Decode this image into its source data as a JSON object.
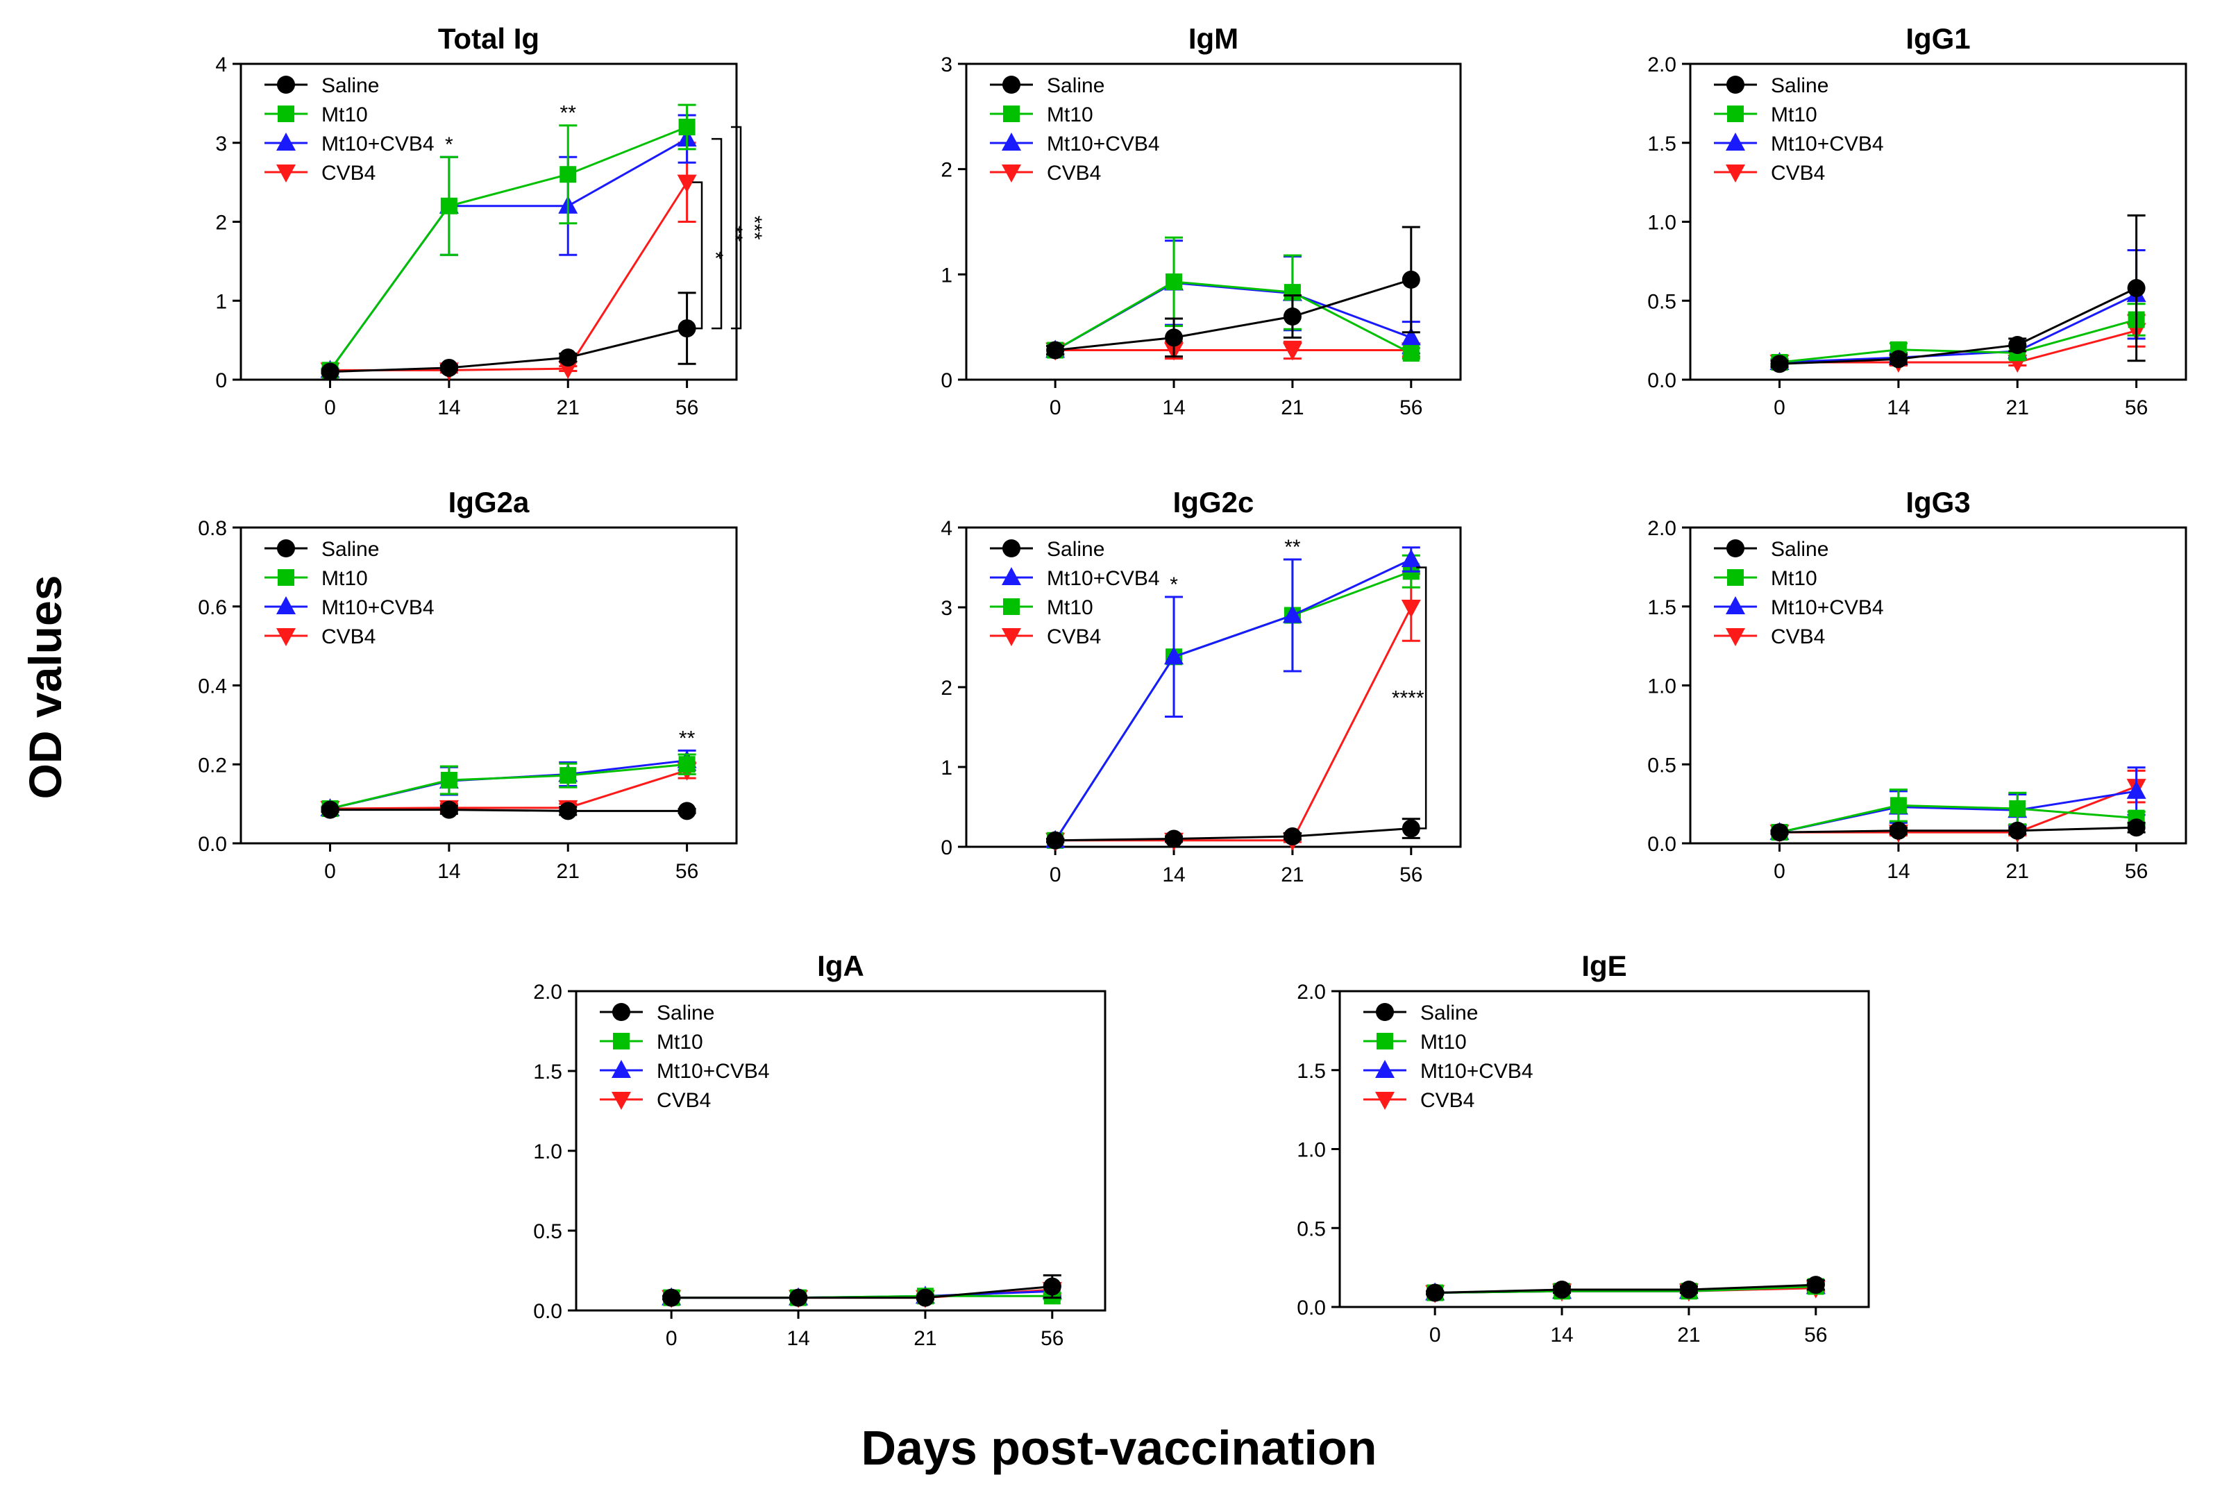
{
  "figure": {
    "ylabel": "OD values",
    "xlabel": "Days post-vaccination"
  },
  "colors": {
    "Saline": "#000000",
    "Mt10": "#00c000",
    "Mt10+CVB4": "#1a1aff",
    "CVB4": "#ff1a1a"
  },
  "markers": {
    "Saline": "circle",
    "Mt10": "square",
    "Mt10+CVB4": "triangle-up",
    "CVB4": "triangle-down"
  },
  "chart_data": [
    {
      "type": "line",
      "title": "Total Ig",
      "x": [
        "0",
        "14",
        "21",
        "56"
      ],
      "ylim": [
        0,
        4
      ],
      "yticks": [
        "0",
        "1",
        "2",
        "3",
        "4"
      ],
      "legend": [
        "Saline",
        "Mt10",
        "Mt10+CVB4",
        "CVB4"
      ],
      "series": [
        {
          "name": "Saline",
          "values": [
            0.1,
            0.15,
            0.28,
            0.65
          ],
          "errors": [
            0.02,
            0.03,
            0.05,
            0.45
          ]
        },
        {
          "name": "Mt10",
          "values": [
            0.12,
            2.2,
            2.6,
            3.2
          ],
          "errors": [
            0.02,
            0.62,
            0.62,
            0.28
          ]
        },
        {
          "name": "Mt10+CVB4",
          "values": [
            0.12,
            2.2,
            2.2,
            3.05
          ],
          "errors": [
            0.02,
            0.62,
            0.62,
            0.3
          ]
        },
        {
          "name": "CVB4",
          "values": [
            0.12,
            0.12,
            0.14,
            2.5
          ],
          "errors": [
            0.02,
            0.03,
            0.03,
            0.5
          ]
        }
      ],
      "sig_labels": [
        {
          "x": "14",
          "text": "*"
        },
        {
          "x": "21",
          "text": "**"
        }
      ],
      "brackets": [
        {
          "from": 0.65,
          "to": 2.5,
          "text": "*"
        },
        {
          "from": 0.65,
          "to": 3.05,
          "text": "**"
        },
        {
          "from": 0.65,
          "to": 3.2,
          "text": "***"
        }
      ]
    },
    {
      "type": "line",
      "title": "IgM",
      "x": [
        "0",
        "14",
        "21",
        "56"
      ],
      "ylim": [
        0,
        3
      ],
      "yticks": [
        "0",
        "1",
        "2",
        "3"
      ],
      "legend": [
        "Saline",
        "Mt10",
        "Mt10+CVB4",
        "CVB4"
      ],
      "series": [
        {
          "name": "Saline",
          "values": [
            0.28,
            0.4,
            0.6,
            0.95
          ],
          "errors": [
            0.04,
            0.18,
            0.2,
            0.5
          ]
        },
        {
          "name": "Mt10",
          "values": [
            0.28,
            0.93,
            0.83,
            0.25
          ],
          "errors": [
            0.04,
            0.42,
            0.35,
            0.05
          ]
        },
        {
          "name": "Mt10+CVB4",
          "values": [
            0.28,
            0.92,
            0.82,
            0.4
          ],
          "errors": [
            0.04,
            0.4,
            0.35,
            0.15
          ]
        },
        {
          "name": "CVB4",
          "values": [
            0.28,
            0.28,
            0.28,
            0.28
          ],
          "errors": [
            0.04,
            0.08,
            0.08,
            0.06
          ]
        }
      ],
      "sig_labels": [],
      "brackets": []
    },
    {
      "type": "line",
      "title": "IgG1",
      "x": [
        "0",
        "14",
        "21",
        "56"
      ],
      "ylim": [
        0,
        2
      ],
      "yticks": [
        "0.0",
        "0.5",
        "1.0",
        "1.5",
        "2.0"
      ],
      "legend": [
        "Saline",
        "Mt10",
        "Mt10+CVB4",
        "CVB4"
      ],
      "series": [
        {
          "name": "Saline",
          "values": [
            0.1,
            0.13,
            0.22,
            0.58
          ],
          "errors": [
            0.02,
            0.03,
            0.04,
            0.46
          ]
        },
        {
          "name": "Mt10",
          "values": [
            0.11,
            0.19,
            0.17,
            0.38
          ],
          "errors": [
            0.02,
            0.04,
            0.04,
            0.1
          ]
        },
        {
          "name": "Mt10+CVB4",
          "values": [
            0.11,
            0.14,
            0.18,
            0.54
          ],
          "errors": [
            0.02,
            0.03,
            0.04,
            0.28
          ]
        },
        {
          "name": "CVB4",
          "values": [
            0.11,
            0.11,
            0.11,
            0.31
          ],
          "errors": [
            0.02,
            0.02,
            0.02,
            0.1
          ]
        }
      ],
      "sig_labels": [],
      "brackets": []
    },
    {
      "type": "line",
      "title": "IgG2a",
      "x": [
        "0",
        "14",
        "21",
        "56"
      ],
      "ylim": [
        0,
        0.8
      ],
      "yticks": [
        "0.0",
        "0.2",
        "0.4",
        "0.6",
        "0.8"
      ],
      "legend": [
        "Saline",
        "Mt10",
        "Mt10+CVB4",
        "CVB4"
      ],
      "series": [
        {
          "name": "Saline",
          "values": [
            0.085,
            0.085,
            0.082,
            0.082
          ],
          "errors": [
            0.005,
            0.01,
            0.01,
            0.005
          ]
        },
        {
          "name": "Mt10",
          "values": [
            0.088,
            0.16,
            0.172,
            0.2
          ],
          "errors": [
            0.005,
            0.035,
            0.03,
            0.025
          ]
        },
        {
          "name": "Mt10+CVB4",
          "values": [
            0.088,
            0.158,
            0.175,
            0.21
          ],
          "errors": [
            0.005,
            0.035,
            0.03,
            0.025
          ]
        },
        {
          "name": "CVB4",
          "values": [
            0.088,
            0.09,
            0.09,
            0.185
          ],
          "errors": [
            0.005,
            0.01,
            0.01,
            0.02
          ]
        }
      ],
      "sig_labels": [
        {
          "x": "56",
          "text": "**"
        }
      ],
      "brackets": []
    },
    {
      "type": "line",
      "title": "IgG2c",
      "x": [
        "0",
        "14",
        "21",
        "56"
      ],
      "ylim": [
        0,
        4
      ],
      "yticks": [
        "0",
        "1",
        "2",
        "3",
        "4"
      ],
      "legend": [
        "Saline",
        "Mt10+CVB4",
        "Mt10",
        "CVB4"
      ],
      "series": [
        {
          "name": "Saline",
          "values": [
            0.08,
            0.1,
            0.13,
            0.23
          ],
          "errors": [
            0.02,
            0.03,
            0.04,
            0.12
          ]
        },
        {
          "name": "Mt10+CVB4",
          "values": [
            0.08,
            2.38,
            2.9,
            3.6
          ],
          "errors": [
            0.02,
            0.75,
            0.7,
            0.15
          ]
        },
        {
          "name": "Mt10",
          "values": [
            0.08,
            2.38,
            2.9,
            3.45
          ],
          "errors": [
            0.02,
            0.75,
            0.7,
            0.2
          ]
        },
        {
          "name": "CVB4",
          "values": [
            0.08,
            0.08,
            0.08,
            3.0
          ],
          "errors": [
            0.02,
            0.02,
            0.02,
            0.42
          ]
        }
      ],
      "sig_labels": [
        {
          "x": "14",
          "text": "*"
        },
        {
          "x": "21",
          "text": "**"
        }
      ],
      "brackets": [
        {
          "from": 0.23,
          "to": 3.5,
          "text": "****"
        }
      ]
    },
    {
      "type": "line",
      "title": "IgG3",
      "x": [
        "0",
        "14",
        "21",
        "56"
      ],
      "ylim": [
        0,
        2
      ],
      "yticks": [
        "0.0",
        "0.5",
        "1.0",
        "1.5",
        "2.0"
      ],
      "legend": [
        "Saline",
        "Mt10",
        "Mt10+CVB4",
        "CVB4"
      ],
      "series": [
        {
          "name": "Saline",
          "values": [
            0.07,
            0.08,
            0.08,
            0.1
          ],
          "errors": [
            0.01,
            0.02,
            0.02,
            0.03
          ]
        },
        {
          "name": "Mt10",
          "values": [
            0.07,
            0.24,
            0.22,
            0.16
          ],
          "errors": [
            0.01,
            0.1,
            0.1,
            0.04
          ]
        },
        {
          "name": "Mt10+CVB4",
          "values": [
            0.07,
            0.23,
            0.21,
            0.33
          ],
          "errors": [
            0.01,
            0.1,
            0.1,
            0.15
          ]
        },
        {
          "name": "CVB4",
          "values": [
            0.07,
            0.07,
            0.07,
            0.36
          ],
          "errors": [
            0.01,
            0.02,
            0.02,
            0.1
          ]
        }
      ],
      "sig_labels": [],
      "brackets": []
    },
    {
      "type": "line",
      "title": "IgA",
      "x": [
        "0",
        "14",
        "21",
        "56"
      ],
      "ylim": [
        0,
        2
      ],
      "yticks": [
        "0.0",
        "0.5",
        "1.0",
        "1.5",
        "2.0"
      ],
      "legend": [
        "Saline",
        "Mt10",
        "Mt10+CVB4",
        "CVB4"
      ],
      "series": [
        {
          "name": "Saline",
          "values": [
            0.08,
            0.08,
            0.08,
            0.15
          ],
          "errors": [
            0.01,
            0.01,
            0.01,
            0.07
          ]
        },
        {
          "name": "Mt10",
          "values": [
            0.08,
            0.08,
            0.09,
            0.09
          ],
          "errors": [
            0.01,
            0.01,
            0.01,
            0.02
          ]
        },
        {
          "name": "Mt10+CVB4",
          "values": [
            0.08,
            0.08,
            0.09,
            0.12
          ],
          "errors": [
            0.01,
            0.01,
            0.01,
            0.03
          ]
        },
        {
          "name": "CVB4",
          "values": [
            0.08,
            0.08,
            0.08,
            0.13
          ],
          "errors": [
            0.01,
            0.01,
            0.01,
            0.03
          ]
        }
      ],
      "sig_labels": [],
      "brackets": []
    },
    {
      "type": "line",
      "title": "IgE",
      "x": [
        "0",
        "14",
        "21",
        "56"
      ],
      "ylim": [
        0,
        2
      ],
      "yticks": [
        "0.0",
        "0.5",
        "1.0",
        "1.5",
        "2.0"
      ],
      "legend": [
        "Saline",
        "Mt10",
        "Mt10+CVB4",
        "CVB4"
      ],
      "series": [
        {
          "name": "Saline",
          "values": [
            0.09,
            0.11,
            0.11,
            0.14
          ],
          "errors": [
            0.01,
            0.02,
            0.02,
            0.03
          ]
        },
        {
          "name": "Mt10",
          "values": [
            0.09,
            0.1,
            0.1,
            0.13
          ],
          "errors": [
            0.01,
            0.01,
            0.01,
            0.02
          ]
        },
        {
          "name": "Mt10+CVB4",
          "values": [
            0.09,
            0.1,
            0.1,
            0.13
          ],
          "errors": [
            0.01,
            0.01,
            0.01,
            0.02
          ]
        },
        {
          "name": "CVB4",
          "values": [
            0.09,
            0.1,
            0.1,
            0.12
          ],
          "errors": [
            0.01,
            0.01,
            0.01,
            0.02
          ]
        }
      ],
      "sig_labels": [],
      "brackets": []
    }
  ]
}
